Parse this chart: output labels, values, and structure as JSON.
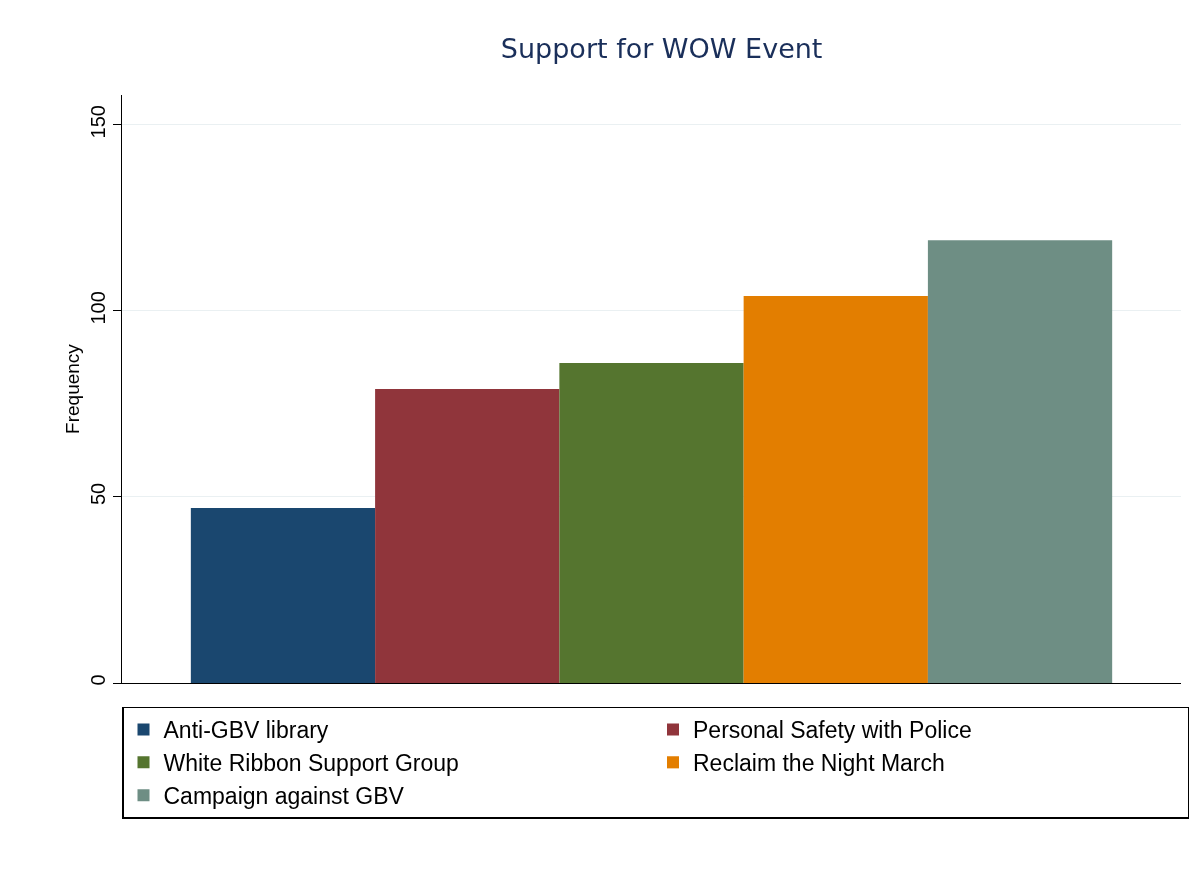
{
  "chart_data": {
    "type": "bar",
    "title": "Support for WOW Event",
    "ylabel": "Frequency",
    "categories": [
      null
    ],
    "series": [
      {
        "name": "Anti-GBV library",
        "color": "#1a476f",
        "values": [
          47
        ]
      },
      {
        "name": "Personal Safety with Police",
        "color": "#90353b",
        "values": [
          79
        ]
      },
      {
        "name": "White Ribbon Support Group",
        "color": "#55752f",
        "values": [
          86
        ]
      },
      {
        "name": "Reclaim the Night March",
        "color": "#e37e00",
        "values": [
          104
        ]
      },
      {
        "name": "Campaign against GBV",
        "color": "#6e8e84",
        "values": [
          119
        ]
      }
    ],
    "ylim": [
      0,
      158
    ],
    "yticks": [
      0,
      50,
      100,
      150
    ],
    "grid": "y",
    "legend": "bottom"
  }
}
